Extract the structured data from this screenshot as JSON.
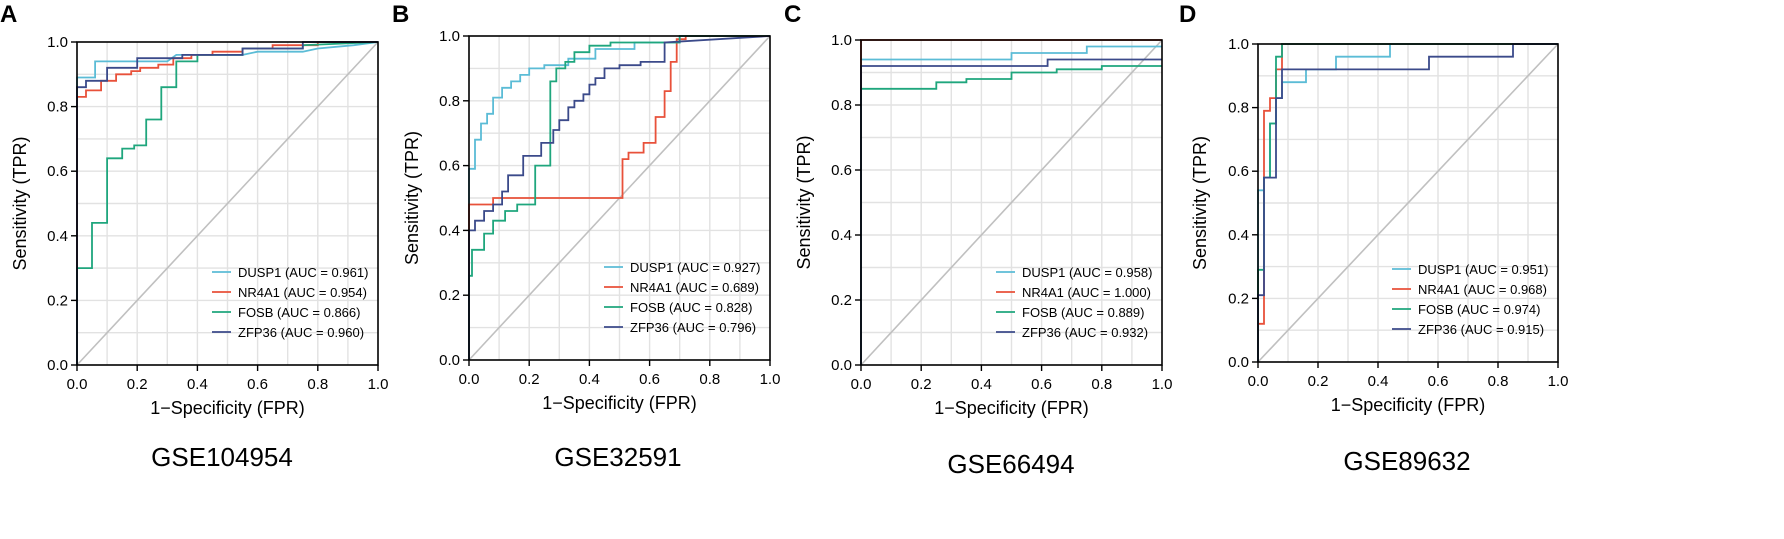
{
  "colors": {
    "DUSP1": "#5bbcd6",
    "NR4A1": "#e8513a",
    "FOSB": "#1fa67d",
    "ZFP36": "#3b4a8a"
  },
  "chart_data": [
    {
      "type": "line",
      "panel": "A",
      "caption": "GSE104954",
      "xlabel": "1−Specificity (FPR)",
      "ylabel": "Sensitivity (TPR)",
      "xlim": [
        0,
        1
      ],
      "ylim": [
        0,
        1
      ],
      "xticks": [
        "0.0",
        "0.2",
        "0.4",
        "0.6",
        "0.8",
        "1.0"
      ],
      "yticks": [
        "0.0",
        "0.2",
        "0.4",
        "0.6",
        "0.8",
        "1.0"
      ],
      "grid": true,
      "legend_position": "bottom-right",
      "series": [
        {
          "name": "DUSP1",
          "auc_label": "DUSP1 (AUC = 0.961)",
          "x": [
            0,
            0,
            0.06,
            0.06,
            0.3,
            0.33,
            0.55,
            0.6,
            0.75,
            0.8,
            0.92,
            1.0
          ],
          "y": [
            0,
            0.89,
            0.89,
            0.94,
            0.94,
            0.96,
            0.96,
            0.97,
            0.97,
            0.98,
            0.99,
            1.0
          ]
        },
        {
          "name": "NR4A1",
          "auc_label": "NR4A1 (AUC = 0.954)",
          "x": [
            0,
            0,
            0.03,
            0.03,
            0.08,
            0.08,
            0.13,
            0.13,
            0.18,
            0.18,
            0.21,
            0.21,
            0.27,
            0.27,
            0.32,
            0.32,
            0.38,
            0.38,
            0.45,
            0.45,
            0.55,
            0.55,
            0.65,
            0.65,
            0.8,
            0.8,
            1.0
          ],
          "y": [
            0,
            0.83,
            0.83,
            0.85,
            0.85,
            0.88,
            0.88,
            0.9,
            0.9,
            0.91,
            0.91,
            0.92,
            0.92,
            0.93,
            0.93,
            0.95,
            0.95,
            0.96,
            0.96,
            0.97,
            0.97,
            0.98,
            0.98,
            0.99,
            0.99,
            1.0,
            1.0
          ]
        },
        {
          "name": "FOSB",
          "auc_label": "FOSB (AUC = 0.866)",
          "x": [
            0,
            0,
            0.05,
            0.05,
            0.1,
            0.1,
            0.15,
            0.15,
            0.19,
            0.19,
            0.23,
            0.23,
            0.28,
            0.28,
            0.33,
            0.33,
            0.4,
            0.4,
            0.55,
            0.55,
            0.75,
            0.75,
            1.0
          ],
          "y": [
            0,
            0.3,
            0.3,
            0.44,
            0.44,
            0.64,
            0.64,
            0.67,
            0.67,
            0.68,
            0.68,
            0.76,
            0.76,
            0.86,
            0.86,
            0.94,
            0.94,
            0.96,
            0.96,
            0.98,
            0.98,
            0.99,
            1.0
          ]
        },
        {
          "name": "ZFP36",
          "auc_label": "ZFP36 (AUC = 0.960)",
          "x": [
            0,
            0,
            0.03,
            0.03,
            0.1,
            0.1,
            0.2,
            0.2,
            0.35,
            0.35,
            0.55,
            0.55,
            0.75,
            0.75,
            1.0
          ],
          "y": [
            0,
            0.86,
            0.86,
            0.88,
            0.88,
            0.92,
            0.92,
            0.95,
            0.95,
            0.96,
            0.96,
            0.98,
            0.98,
            1.0,
            1.0
          ]
        }
      ]
    },
    {
      "type": "line",
      "panel": "B",
      "caption": "GSE32591",
      "xlabel": "1−Specificity (FPR)",
      "ylabel": "Sensitivity (TPR)",
      "xlim": [
        0,
        1
      ],
      "ylim": [
        0,
        1
      ],
      "xticks": [
        "0.0",
        "0.2",
        "0.4",
        "0.6",
        "0.8",
        "1.0"
      ],
      "yticks": [
        "0.0",
        "0.2",
        "0.4",
        "0.6",
        "0.8",
        "1.0"
      ],
      "grid": true,
      "legend_position": "bottom-right",
      "series": [
        {
          "name": "DUSP1",
          "auc_label": "DUSP1 (AUC = 0.927)",
          "x": [
            0,
            0,
            0.02,
            0.02,
            0.04,
            0.04,
            0.06,
            0.06,
            0.08,
            0.08,
            0.11,
            0.11,
            0.14,
            0.14,
            0.17,
            0.17,
            0.2,
            0.2,
            0.25,
            0.25,
            0.33,
            0.33,
            0.42,
            0.42,
            0.55,
            0.55,
            0.7,
            0.7,
            1.0
          ],
          "y": [
            0,
            0.59,
            0.59,
            0.68,
            0.68,
            0.73,
            0.73,
            0.76,
            0.76,
            0.81,
            0.81,
            0.84,
            0.84,
            0.86,
            0.86,
            0.88,
            0.88,
            0.9,
            0.9,
            0.91,
            0.91,
            0.93,
            0.93,
            0.96,
            0.96,
            0.98,
            0.98,
            1.0,
            1.0
          ]
        },
        {
          "name": "NR4A1",
          "auc_label": "NR4A1 (AUC = 0.689)",
          "x": [
            0,
            0,
            0.08,
            0.08,
            0.51,
            0.51,
            0.53,
            0.53,
            0.58,
            0.58,
            0.62,
            0.62,
            0.65,
            0.65,
            0.67,
            0.67,
            0.69,
            0.69,
            0.72,
            0.72,
            1.0
          ],
          "y": [
            0,
            0.48,
            0.48,
            0.5,
            0.5,
            0.62,
            0.62,
            0.64,
            0.64,
            0.67,
            0.67,
            0.75,
            0.75,
            0.83,
            0.83,
            0.92,
            0.92,
            0.99,
            0.99,
            1.0,
            1.0
          ]
        },
        {
          "name": "FOSB",
          "auc_label": "FOSB (AUC = 0.828)",
          "x": [
            0,
            0,
            0.01,
            0.01,
            0.05,
            0.05,
            0.08,
            0.08,
            0.12,
            0.12,
            0.16,
            0.16,
            0.22,
            0.22,
            0.27,
            0.27,
            0.29,
            0.29,
            0.32,
            0.32,
            0.35,
            0.35,
            0.4,
            0.4,
            0.47,
            0.47,
            0.7,
            0.7,
            1.0
          ],
          "y": [
            0,
            0.26,
            0.26,
            0.34,
            0.34,
            0.39,
            0.39,
            0.43,
            0.43,
            0.46,
            0.46,
            0.48,
            0.48,
            0.6,
            0.6,
            0.86,
            0.86,
            0.9,
            0.9,
            0.92,
            0.92,
            0.95,
            0.95,
            0.97,
            0.97,
            0.98,
            0.98,
            1.0,
            1.0
          ]
        },
        {
          "name": "ZFP36",
          "auc_label": "ZFP36 (AUC = 0.796)",
          "x": [
            0,
            0,
            0.02,
            0.02,
            0.05,
            0.05,
            0.08,
            0.08,
            0.11,
            0.11,
            0.13,
            0.13,
            0.18,
            0.18,
            0.24,
            0.24,
            0.28,
            0.28,
            0.3,
            0.3,
            0.33,
            0.33,
            0.35,
            0.35,
            0.38,
            0.38,
            0.4,
            0.4,
            0.42,
            0.42,
            0.45,
            0.45,
            0.5,
            0.5,
            0.57,
            0.57,
            0.65,
            0.65,
            1.0
          ],
          "y": [
            0,
            0.4,
            0.4,
            0.43,
            0.43,
            0.46,
            0.46,
            0.48,
            0.48,
            0.52,
            0.52,
            0.57,
            0.57,
            0.63,
            0.63,
            0.67,
            0.67,
            0.71,
            0.71,
            0.74,
            0.74,
            0.78,
            0.78,
            0.8,
            0.8,
            0.82,
            0.82,
            0.85,
            0.85,
            0.87,
            0.87,
            0.9,
            0.9,
            0.91,
            0.91,
            0.92,
            0.92,
            0.98,
            1.0
          ]
        }
      ]
    },
    {
      "type": "line",
      "panel": "C",
      "caption": "GSE66494",
      "xlabel": "1−Specificity (FPR)",
      "ylabel": "Sensitivity (TPR)",
      "xlim": [
        0,
        1
      ],
      "ylim": [
        0,
        1
      ],
      "xticks": [
        "0.0",
        "0.2",
        "0.4",
        "0.6",
        "0.8",
        "1.0"
      ],
      "yticks": [
        "0.0",
        "0.2",
        "0.4",
        "0.6",
        "0.8",
        "1.0"
      ],
      "grid": true,
      "legend_position": "bottom-right",
      "series": [
        {
          "name": "DUSP1",
          "auc_label": "DUSP1 (AUC = 0.958)",
          "x": [
            0,
            0,
            0.5,
            0.5,
            0.75,
            0.75,
            1.0
          ],
          "y": [
            0,
            0.94,
            0.94,
            0.96,
            0.96,
            0.98,
            0.98
          ]
        },
        {
          "name": "NR4A1",
          "auc_label": "NR4A1 (AUC = 1.000)",
          "x": [
            0,
            0,
            1.0
          ],
          "y": [
            0,
            1.0,
            1.0
          ]
        },
        {
          "name": "FOSB",
          "auc_label": "FOSB (AUC = 0.889)",
          "x": [
            0,
            0,
            0.25,
            0.25,
            0.35,
            0.35,
            0.5,
            0.5,
            0.65,
            0.65,
            0.8,
            0.8,
            1.0
          ],
          "y": [
            0,
            0.85,
            0.85,
            0.87,
            0.87,
            0.88,
            0.88,
            0.9,
            0.9,
            0.91,
            0.91,
            0.92,
            0.92
          ]
        },
        {
          "name": "ZFP36",
          "auc_label": "ZFP36 (AUC = 0.932)",
          "x": [
            0,
            0,
            0.62,
            0.62,
            1.0
          ],
          "y": [
            0,
            0.92,
            0.92,
            0.94,
            0.94
          ]
        }
      ]
    },
    {
      "type": "line",
      "panel": "D",
      "caption": "GSE89632",
      "xlabel": "1−Specificity (FPR)",
      "ylabel": "Sensitivity (TPR)",
      "xlim": [
        0,
        1
      ],
      "ylim": [
        0,
        1
      ],
      "xticks": [
        "0.0",
        "0.2",
        "0.4",
        "0.6",
        "0.8",
        "1.0"
      ],
      "yticks": [
        "0.0",
        "0.2",
        "0.4",
        "0.6",
        "0.8",
        "1.0"
      ],
      "grid": true,
      "legend_position": "bottom-right",
      "series": [
        {
          "name": "DUSP1",
          "auc_label": "DUSP1 (AUC = 0.951)",
          "x": [
            0,
            0,
            0.02,
            0.02,
            0.04,
            0.04,
            0.06,
            0.06,
            0.08,
            0.08,
            0.1,
            0.1,
            0.16,
            0.16,
            0.26,
            0.26,
            0.44,
            0.44,
            1.0
          ],
          "y": [
            0,
            0.54,
            0.54,
            0.58,
            0.58,
            0.75,
            0.75,
            0.83,
            0.83,
            0.88,
            0.88,
            0.88,
            0.88,
            0.92,
            0.92,
            0.96,
            0.96,
            1.0,
            1.0
          ]
        },
        {
          "name": "NR4A1",
          "auc_label": "NR4A1 (AUC = 0.968)",
          "x": [
            0,
            0,
            0.02,
            0.02,
            0.04,
            0.04,
            0.06,
            0.06,
            0.08,
            0.08,
            1.0
          ],
          "y": [
            0,
            0.12,
            0.12,
            0.79,
            0.79,
            0.83,
            0.83,
            0.92,
            0.92,
            1.0,
            1.0
          ]
        },
        {
          "name": "FOSB",
          "auc_label": "FOSB (AUC = 0.974)",
          "x": [
            0,
            0,
            0.02,
            0.02,
            0.04,
            0.04,
            0.06,
            0.06,
            0.08,
            0.08,
            1.0
          ],
          "y": [
            0,
            0.29,
            0.29,
            0.58,
            0.58,
            0.75,
            0.75,
            0.96,
            0.96,
            1.0,
            1.0
          ]
        },
        {
          "name": "ZFP36",
          "auc_label": "ZFP36 (AUC = 0.915)",
          "x": [
            0,
            0,
            0.02,
            0.02,
            0.04,
            0.04,
            0.06,
            0.06,
            0.08,
            0.08,
            0.57,
            0.57,
            0.85,
            0.85,
            1.0
          ],
          "y": [
            0,
            0.21,
            0.21,
            0.58,
            0.58,
            0.58,
            0.58,
            0.83,
            0.83,
            0.92,
            0.92,
            0.96,
            0.96,
            1.0,
            1.0
          ]
        }
      ]
    }
  ]
}
